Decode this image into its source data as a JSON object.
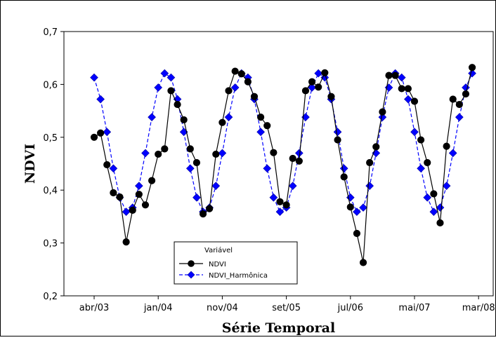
{
  "chart_data": {
    "type": "line",
    "title": "",
    "xlabel": "Série Temporal",
    "ylabel": "NDVI",
    "ylim": [
      0.2,
      0.7
    ],
    "yticks": [
      "0,2",
      "0,3",
      "0,4",
      "0,5",
      "0,6",
      "0,7"
    ],
    "xticks": [
      "abr/03",
      "jan/04",
      "nov/04",
      "set/05",
      "jul/06",
      "mai/07",
      "mar/08"
    ],
    "x_start": "abr/03",
    "x_end": "mar/08",
    "legend": {
      "title": "Variável",
      "position": "bottom-center"
    },
    "series": [
      {
        "name": "NDVI",
        "color": "#000000",
        "marker": "circle",
        "line": "solid",
        "values": [
          0.5,
          0.508,
          0.448,
          0.395,
          0.387,
          0.302,
          0.362,
          0.392,
          0.372,
          0.418,
          0.468,
          0.478,
          0.588,
          0.562,
          0.533,
          0.478,
          0.452,
          0.355,
          0.365,
          0.468,
          0.528,
          0.588,
          0.625,
          0.62,
          0.605,
          0.577,
          0.538,
          0.522,
          0.471,
          0.378,
          0.372,
          0.46,
          0.455,
          0.588,
          0.605,
          0.595,
          0.622,
          0.577,
          0.495,
          0.425,
          0.368,
          0.318,
          0.263,
          0.452,
          0.482,
          0.548,
          0.617,
          0.617,
          0.592,
          0.592,
          0.568,
          0.495,
          0.452,
          0.393,
          0.338,
          0.483,
          0.572,
          0.562,
          0.582,
          0.632
        ]
      },
      {
        "name": "NDVI_Harmônica",
        "color": "#0000ff",
        "marker": "diamond",
        "line": "dashed",
        "values": [
          0.613,
          0.572,
          0.51,
          0.441,
          0.386,
          0.359,
          0.367,
          0.408,
          0.47,
          0.538,
          0.594,
          0.621,
          0.613,
          0.572,
          0.51,
          0.441,
          0.386,
          0.359,
          0.367,
          0.408,
          0.47,
          0.538,
          0.594,
          0.621,
          0.613,
          0.572,
          0.51,
          0.441,
          0.386,
          0.359,
          0.367,
          0.408,
          0.47,
          0.538,
          0.594,
          0.621,
          0.613,
          0.572,
          0.51,
          0.441,
          0.386,
          0.359,
          0.367,
          0.408,
          0.47,
          0.538,
          0.594,
          0.621,
          0.613,
          0.572,
          0.51,
          0.441,
          0.386,
          0.359,
          0.367,
          0.408,
          0.47,
          0.538,
          0.594,
          0.621
        ]
      }
    ]
  }
}
